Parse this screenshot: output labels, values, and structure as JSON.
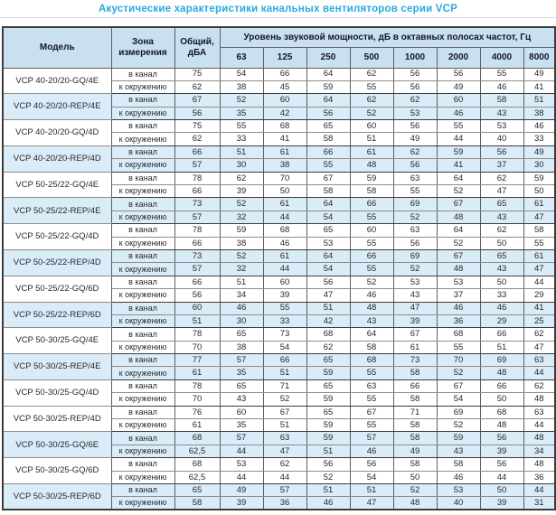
{
  "title": "Акустические характеристики канальных вентиляторов  серии VCP",
  "table": {
    "headers": {
      "model": "Модель",
      "zone": "Зона измерения",
      "total": "Общий, дБА",
      "spl": "Уровень звуковой мощности, дБ в октавных полосах частот, Гц",
      "frequencies": [
        "63",
        "125",
        "250",
        "500",
        "1000",
        "2000",
        "4000",
        "8000"
      ]
    },
    "zone_labels": {
      "in_duct": "в канал",
      "to_surroundings": "к окружению"
    },
    "rows": [
      {
        "model": "VCP 40-20/20-GQ/4E",
        "shaded": false,
        "in": {
          "total": "75",
          "bands": [
            "54",
            "66",
            "64",
            "62",
            "56",
            "56",
            "55",
            "49"
          ]
        },
        "out": {
          "total": "62",
          "bands": [
            "38",
            "45",
            "59",
            "55",
            "56",
            "49",
            "46",
            "41"
          ]
        }
      },
      {
        "model": "VCP 40-20/20-REP/4E",
        "shaded": true,
        "in": {
          "total": "67",
          "bands": [
            "52",
            "60",
            "64",
            "62",
            "62",
            "60",
            "58",
            "51"
          ]
        },
        "out": {
          "total": "56",
          "bands": [
            "35",
            "42",
            "56",
            "52",
            "53",
            "46",
            "43",
            "38"
          ]
        }
      },
      {
        "model": "VCP 40-20/20-GQ/4D",
        "shaded": false,
        "in": {
          "total": "75",
          "bands": [
            "55",
            "68",
            "65",
            "60",
            "56",
            "55",
            "53",
            "46"
          ]
        },
        "out": {
          "total": "62",
          "bands": [
            "33",
            "41",
            "58",
            "51",
            "49",
            "44",
            "40",
            "33"
          ]
        }
      },
      {
        "model": "VCP 40-20/20-REP/4D",
        "shaded": true,
        "in": {
          "total": "66",
          "bands": [
            "51",
            "61",
            "66",
            "61",
            "62",
            "59",
            "56",
            "49"
          ]
        },
        "out": {
          "total": "57",
          "bands": [
            "30",
            "38",
            "55",
            "48",
            "56",
            "41",
            "37",
            "30"
          ]
        }
      },
      {
        "model": "VCP 50-25/22-GQ/4E",
        "shaded": false,
        "in": {
          "total": "78",
          "bands": [
            "62",
            "70",
            "67",
            "59",
            "63",
            "64",
            "62",
            "59"
          ]
        },
        "out": {
          "total": "66",
          "bands": [
            "39",
            "50",
            "58",
            "58",
            "55",
            "52",
            "47",
            "50"
          ]
        }
      },
      {
        "model": "VCP 50-25/22-REP/4E",
        "shaded": true,
        "in": {
          "total": "73",
          "bands": [
            "52",
            "61",
            "64",
            "66",
            "69",
            "67",
            "65",
            "61"
          ]
        },
        "out": {
          "total": "57",
          "bands": [
            "32",
            "44",
            "54",
            "55",
            "52",
            "48",
            "43",
            "47"
          ]
        }
      },
      {
        "model": "VCP 50-25/22-GQ/4D",
        "shaded": false,
        "in": {
          "total": "78",
          "bands": [
            "59",
            "68",
            "65",
            "60",
            "63",
            "64",
            "62",
            "58"
          ]
        },
        "out": {
          "total": "66",
          "bands": [
            "38",
            "46",
            "53",
            "55",
            "56",
            "52",
            "50",
            "55"
          ]
        }
      },
      {
        "model": "VCP 50-25/22-REP/4D",
        "shaded": true,
        "in": {
          "total": "73",
          "bands": [
            "52",
            "61",
            "64",
            "66",
            "69",
            "67",
            "65",
            "61"
          ]
        },
        "out": {
          "total": "57",
          "bands": [
            "32",
            "44",
            "54",
            "55",
            "52",
            "48",
            "43",
            "47"
          ]
        }
      },
      {
        "model": "VCP 50-25/22-GQ/6D",
        "shaded": false,
        "in": {
          "total": "66",
          "bands": [
            "51",
            "60",
            "56",
            "52",
            "53",
            "53",
            "50",
            "44"
          ]
        },
        "out": {
          "total": "56",
          "bands": [
            "34",
            "39",
            "47",
            "46",
            "43",
            "37",
            "33",
            "29"
          ]
        }
      },
      {
        "model": "VCP 50-25/22-REP/6D",
        "shaded": true,
        "in": {
          "total": "60",
          "bands": [
            "46",
            "55",
            "51",
            "48",
            "47",
            "46",
            "46",
            "41"
          ]
        },
        "out": {
          "total": "51",
          "bands": [
            "30",
            "33",
            "42",
            "43",
            "39",
            "36",
            "29",
            "25"
          ]
        }
      },
      {
        "model": "VCP 50-30/25-GQ/4E",
        "shaded": false,
        "in": {
          "total": "78",
          "bands": [
            "65",
            "73",
            "68",
            "64",
            "67",
            "68",
            "66",
            "62"
          ]
        },
        "out": {
          "total": "70",
          "bands": [
            "38",
            "54",
            "62",
            "58",
            "61",
            "55",
            "51",
            "47"
          ]
        }
      },
      {
        "model": "VCP 50-30/25-REP/4E",
        "shaded": true,
        "in": {
          "total": "77",
          "bands": [
            "57",
            "66",
            "65",
            "68",
            "73",
            "70",
            "69",
            "63"
          ]
        },
        "out": {
          "total": "61",
          "bands": [
            "35",
            "51",
            "59",
            "55",
            "58",
            "52",
            "48",
            "44"
          ]
        }
      },
      {
        "model": "VCP 50-30/25-GQ/4D",
        "shaded": false,
        "in": {
          "total": "78",
          "bands": [
            "65",
            "71",
            "65",
            "63",
            "66",
            "67",
            "66",
            "62"
          ]
        },
        "out": {
          "total": "70",
          "bands": [
            "43",
            "52",
            "59",
            "55",
            "58",
            "54",
            "50",
            "48"
          ]
        }
      },
      {
        "model": "VCP 50-30/25-REP/4D",
        "shaded": false,
        "in": {
          "total": "76",
          "bands": [
            "60",
            "67",
            "65",
            "67",
            "71",
            "69",
            "68",
            "63"
          ]
        },
        "out": {
          "total": "61",
          "bands": [
            "35",
            "51",
            "59",
            "55",
            "58",
            "52",
            "48",
            "44"
          ]
        }
      },
      {
        "model": "VCP 50-30/25-GQ/6E",
        "shaded": true,
        "in": {
          "total": "68",
          "bands": [
            "57",
            "63",
            "59",
            "57",
            "58",
            "59",
            "56",
            "48"
          ]
        },
        "out": {
          "total": "62,5",
          "bands": [
            "44",
            "47",
            "51",
            "46",
            "49",
            "43",
            "39",
            "34"
          ]
        }
      },
      {
        "model": "VCP 50-30/25-GQ/6D",
        "shaded": false,
        "in": {
          "total": "68",
          "bands": [
            "53",
            "62",
            "56",
            "56",
            "58",
            "58",
            "56",
            "48"
          ]
        },
        "out": {
          "total": "62,5",
          "bands": [
            "44",
            "44",
            "52",
            "54",
            "50",
            "46",
            "44",
            "36"
          ]
        }
      },
      {
        "model": "VCP 50-30/25-REP/6D",
        "shaded": true,
        "in": {
          "total": "65",
          "bands": [
            "49",
            "57",
            "51",
            "51",
            "52",
            "53",
            "50",
            "44"
          ]
        },
        "out": {
          "total": "58",
          "bands": [
            "39",
            "36",
            "46",
            "47",
            "48",
            "40",
            "39",
            "31"
          ]
        }
      }
    ]
  }
}
